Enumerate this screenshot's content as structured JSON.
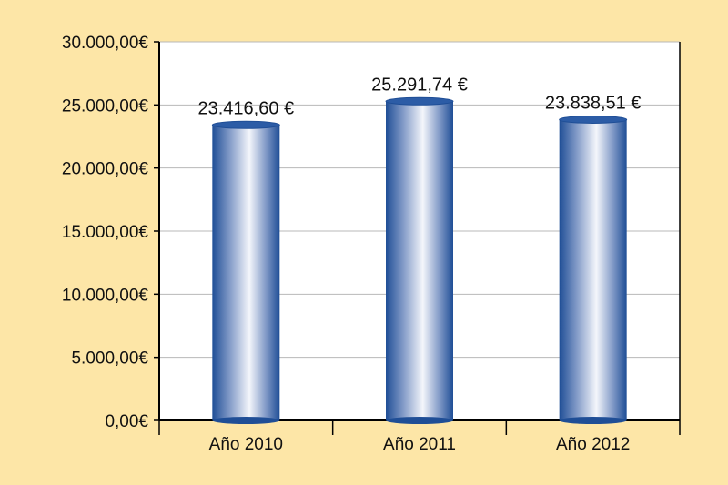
{
  "colors": {
    "background": "#FDE6A7",
    "plot_area": "#FFFFFF",
    "grid": "#B8B8B8",
    "axis": "#000000",
    "bar_dark": "#1F4E96",
    "bar_light": "#F4F6FB"
  },
  "chart_data": {
    "type": "bar",
    "title": "",
    "xlabel": "",
    "ylabel": "",
    "categories": [
      "Año 2010",
      "Año 2011",
      "Año 2012"
    ],
    "values": [
      23416.6,
      25291.74,
      23838.51
    ],
    "value_labels": [
      "23.416,60 €",
      "25.291,74 €",
      "23.838,51 €"
    ],
    "ylim": [
      0,
      30000
    ],
    "yticks": [
      0,
      5000,
      10000,
      15000,
      20000,
      25000,
      30000
    ],
    "ytick_labels": [
      "0,00€",
      "5.000,00€",
      "10.000,00€",
      "15.000,00€",
      "20.000,00€",
      "25.000,00€",
      "30.000,00€"
    ],
    "grid": true,
    "style": "3d-cylinder"
  }
}
